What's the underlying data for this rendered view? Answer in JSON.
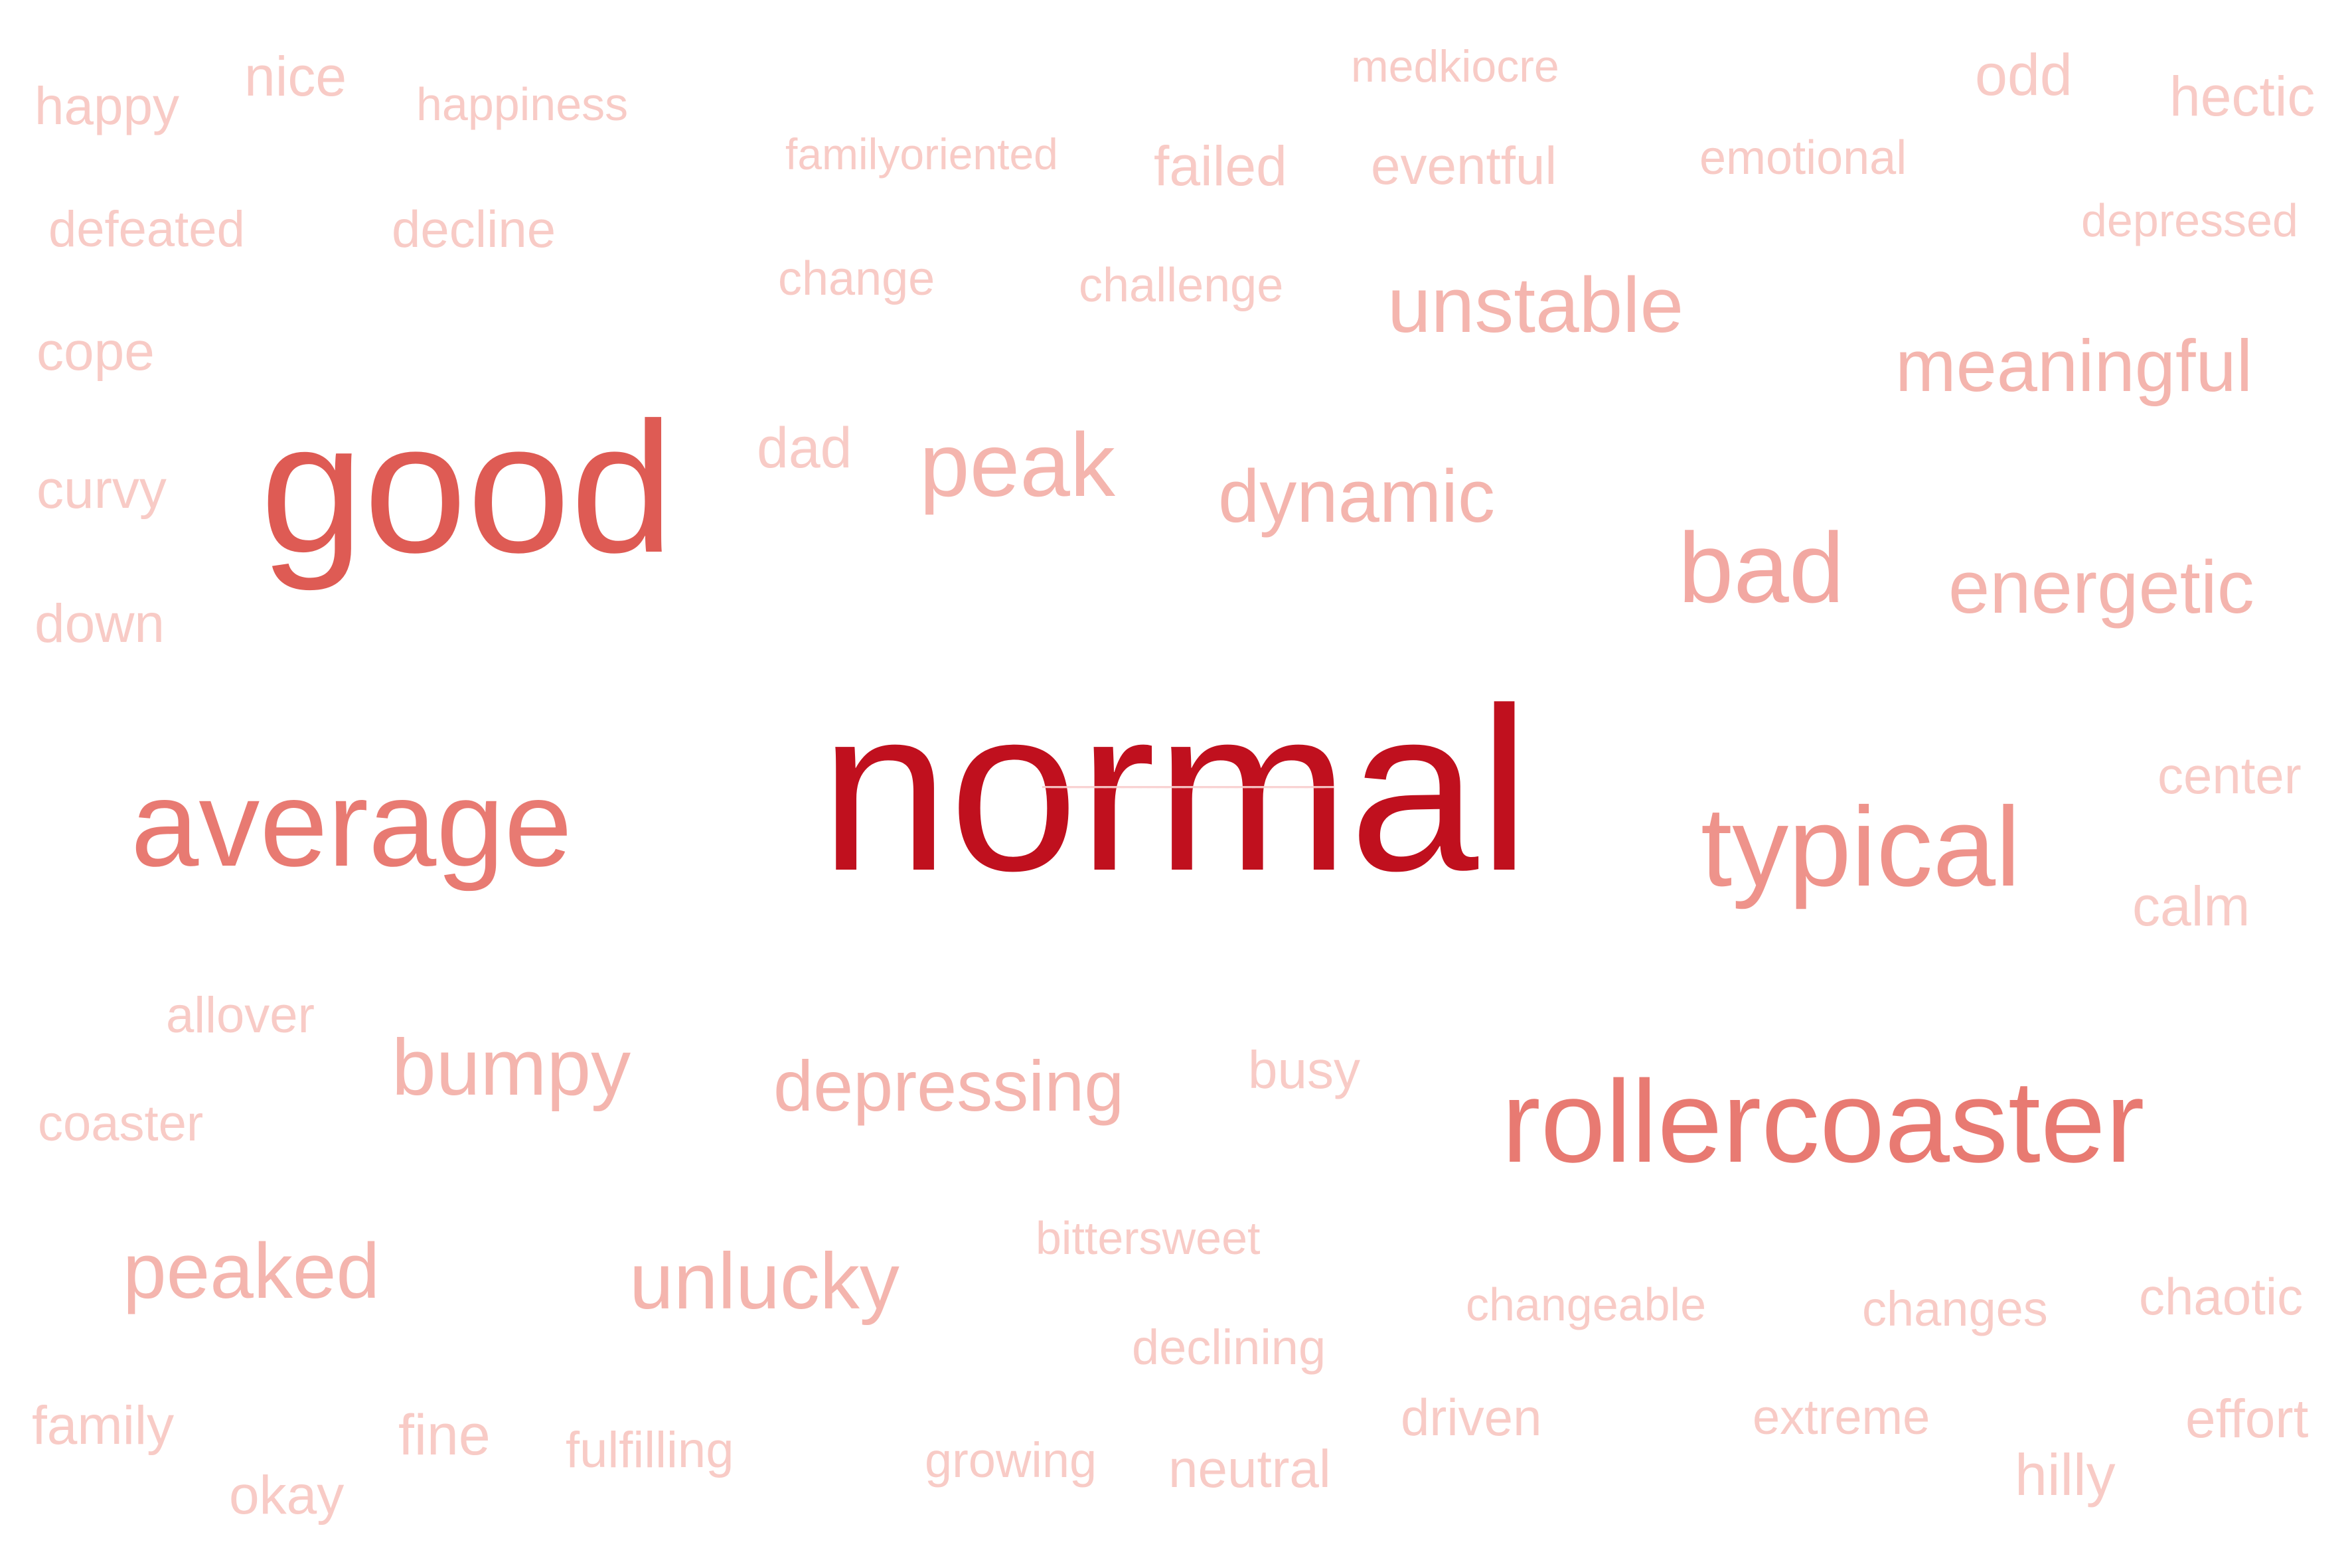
{
  "colors": {
    "background": "#ffffff",
    "dark_red": "#c0101e",
    "red": "#de5b54",
    "salmon": "#e87a72",
    "light_salmon": "#f2a8a2",
    "pale": "#f6c2bd",
    "palest": "#fad6d2"
  },
  "words": [
    {
      "text": "normal",
      "count": 100,
      "color": "#c0101e"
    },
    {
      "text": "good",
      "count": 62,
      "color": "#de5b54"
    },
    {
      "text": "average",
      "count": 48,
      "color": "#e87a72"
    },
    {
      "text": "rollercoaster",
      "count": 42,
      "color": "#e87a72"
    },
    {
      "text": "typical",
      "count": 38,
      "color": "#ee938b"
    },
    {
      "text": "bad",
      "count": 32,
      "color": "#f2a8a2"
    },
    {
      "text": "unstable",
      "count": 24,
      "color": "#f4b5ae"
    },
    {
      "text": "meaningful",
      "count": 22,
      "color": "#f4b5ae"
    },
    {
      "text": "peak",
      "count": 26,
      "color": "#f4b5ae"
    },
    {
      "text": "dynamic",
      "count": 22,
      "color": "#f4b5ae"
    },
    {
      "text": "energetic",
      "count": 22,
      "color": "#f4b5ae"
    },
    {
      "text": "bumpy",
      "count": 22,
      "color": "#f4b5ae"
    },
    {
      "text": "depressing",
      "count": 20,
      "color": "#f4b5ae"
    },
    {
      "text": "peaked",
      "count": 22,
      "color": "#f4b5ae"
    },
    {
      "text": "unlucky",
      "count": 22,
      "color": "#f4b5ae"
    },
    {
      "text": "happy",
      "count": 10,
      "color": "#f8cbc6"
    },
    {
      "text": "nice",
      "count": 10,
      "color": "#f8cbc6"
    },
    {
      "text": "happiness",
      "count": 8,
      "color": "#f8cbc6"
    },
    {
      "text": "medkiocre",
      "count": 8,
      "color": "#f8cbc6"
    },
    {
      "text": "odd",
      "count": 10,
      "color": "#f8cbc6"
    },
    {
      "text": "hectic",
      "count": 10,
      "color": "#f8cbc6"
    },
    {
      "text": "familyoriented",
      "count": 8,
      "color": "#f8cbc6"
    },
    {
      "text": "failed",
      "count": 10,
      "color": "#f8cbc6"
    },
    {
      "text": "eventful",
      "count": 10,
      "color": "#f8cbc6"
    },
    {
      "text": "emotional",
      "count": 8,
      "color": "#f8cbc6"
    },
    {
      "text": "defeated",
      "count": 9,
      "color": "#f8cbc6"
    },
    {
      "text": "decline",
      "count": 9,
      "color": "#f8cbc6"
    },
    {
      "text": "depressed",
      "count": 8,
      "color": "#f8cbc6"
    },
    {
      "text": "change",
      "count": 8,
      "color": "#f8cbc6"
    },
    {
      "text": "challenge",
      "count": 8,
      "color": "#f8cbc6"
    },
    {
      "text": "cope",
      "count": 9,
      "color": "#f8cbc6"
    },
    {
      "text": "dad",
      "count": 9,
      "color": "#f8cbc6"
    },
    {
      "text": "curvy",
      "count": 9,
      "color": "#f8cbc6"
    },
    {
      "text": "down",
      "count": 9,
      "color": "#f8cbc6"
    },
    {
      "text": "center",
      "count": 9,
      "color": "#f8cbc6"
    },
    {
      "text": "calm",
      "count": 9,
      "color": "#f8cbc6"
    },
    {
      "text": "allover",
      "count": 8,
      "color": "#f8cbc6"
    },
    {
      "text": "busy",
      "count": 8,
      "color": "#f8cbc6"
    },
    {
      "text": "coaster",
      "count": 8,
      "color": "#f8cbc6"
    },
    {
      "text": "bittersweet",
      "count": 8,
      "color": "#f8cbc6"
    },
    {
      "text": "changeable",
      "count": 8,
      "color": "#f8cbc6"
    },
    {
      "text": "changes",
      "count": 8,
      "color": "#f8cbc6"
    },
    {
      "text": "chaotic",
      "count": 8,
      "color": "#f8cbc6"
    },
    {
      "text": "declining",
      "count": 8,
      "color": "#f8cbc6"
    },
    {
      "text": "family",
      "count": 9,
      "color": "#f8cbc6"
    },
    {
      "text": "fine",
      "count": 9,
      "color": "#f8cbc6"
    },
    {
      "text": "fulfilling",
      "count": 8,
      "color": "#f8cbc6"
    },
    {
      "text": "growing",
      "count": 8,
      "color": "#f8cbc6"
    },
    {
      "text": "neutral",
      "count": 8,
      "color": "#f8cbc6"
    },
    {
      "text": "driven",
      "count": 8,
      "color": "#f8cbc6"
    },
    {
      "text": "extreme",
      "count": 8,
      "color": "#f8cbc6"
    },
    {
      "text": "effort",
      "count": 9,
      "color": "#f8cbc6"
    },
    {
      "text": "okay",
      "count": 9,
      "color": "#f8cbc6"
    },
    {
      "text": "hilly",
      "count": 9,
      "color": "#f8cbc6"
    }
  ]
}
